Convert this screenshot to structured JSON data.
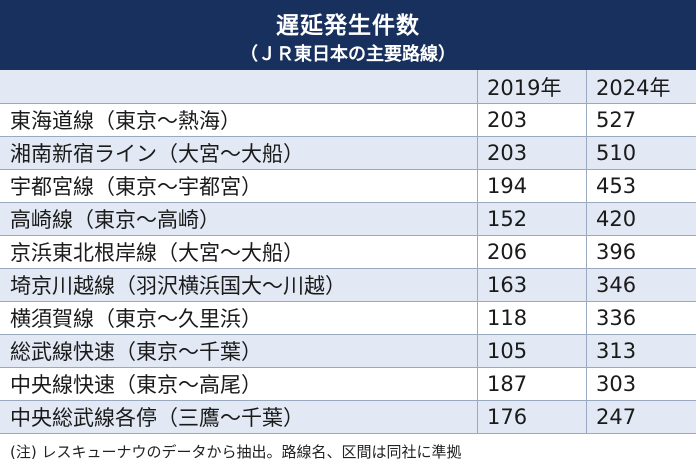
{
  "header": {
    "title": "遅延発生件数",
    "subtitle": "（ＪＲ東日本の主要路線）"
  },
  "table": {
    "columns": [
      "",
      "2019年",
      "2024年"
    ],
    "rows": [
      {
        "name": "東海道線（東京～熱海）",
        "y2019": "203",
        "y2024": "527"
      },
      {
        "name": "湘南新宿ライン（大宮～大船）",
        "y2019": "203",
        "y2024": "510"
      },
      {
        "name": "宇都宮線（東京～宇都宮）",
        "y2019": "194",
        "y2024": "453"
      },
      {
        "name": "高崎線（東京～高崎）",
        "y2019": "152",
        "y2024": "420"
      },
      {
        "name": "京浜東北根岸線（大宮～大船）",
        "y2019": "206",
        "y2024": "396"
      },
      {
        "name": "埼京川越線（羽沢横浜国大～川越）",
        "y2019": "163",
        "y2024": "346"
      },
      {
        "name": "横須賀線（東京～久里浜）",
        "y2019": "118",
        "y2024": "336"
      },
      {
        "name": "総武線快速（東京～千葉）",
        "y2019": "105",
        "y2024": "313"
      },
      {
        "name": "中央線快速（東京～高尾）",
        "y2019": "187",
        "y2024": "303"
      },
      {
        "name": "中央総武線各停（三鷹～千葉）",
        "y2019": "176",
        "y2024": "247"
      }
    ]
  },
  "note": "(注) レスキューナウのデータから抽出。路線名、区間は同社に準拠",
  "colors": {
    "header_bg": "#17305e",
    "stripe_bg": "#e2e9f4",
    "rule": "#9aa9c0"
  }
}
